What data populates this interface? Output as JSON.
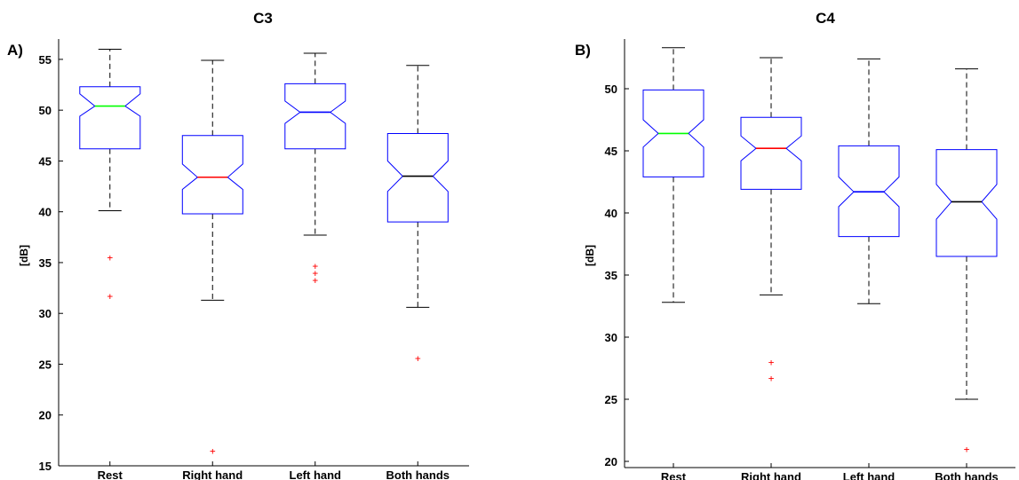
{
  "chart_data": [
    {
      "type": "boxplot",
      "panel_label": "A)",
      "title": "C3",
      "xlabel": "",
      "ylabel": "[dB]",
      "ylim": [
        15,
        57
      ],
      "yticks": [
        15,
        20,
        25,
        30,
        35,
        40,
        45,
        50,
        55
      ],
      "grid": false,
      "categories": [
        "Rest",
        "Right hand",
        "Left hand",
        "Both hands"
      ],
      "boxes": [
        {
          "category": "Rest",
          "whisker_low": 40.1,
          "q1": 46.2,
          "median": 50.4,
          "q3": 52.3,
          "whisker_high": 56.0,
          "notch_low": 49.4,
          "notch_high": 51.6,
          "outliers": [
            35.5,
            31.7
          ],
          "median_color": "#00ff00"
        },
        {
          "category": "Right hand",
          "whisker_low": 31.3,
          "q1": 39.8,
          "median": 43.4,
          "q3": 47.5,
          "whisker_high": 54.9,
          "notch_low": 42.2,
          "notch_high": 44.7,
          "outliers": [
            16.5
          ],
          "median_color": "#ff0000"
        },
        {
          "category": "Left hand",
          "whisker_low": 37.7,
          "q1": 46.2,
          "median": 49.8,
          "q3": 52.6,
          "whisker_high": 55.6,
          "notch_low": 48.7,
          "notch_high": 50.9,
          "outliers": [
            34.7,
            34.0,
            33.3
          ],
          "median_color": "#0000ff"
        },
        {
          "category": "Both hands",
          "whisker_low": 30.6,
          "q1": 39.0,
          "median": 43.5,
          "q3": 47.7,
          "whisker_high": 54.4,
          "notch_low": 42.0,
          "notch_high": 45.0,
          "outliers": [
            25.6
          ],
          "median_color": "#000000"
        }
      ]
    },
    {
      "type": "boxplot",
      "panel_label": "B)",
      "title": "C4",
      "xlabel": "",
      "ylabel": "[dB]",
      "ylim": [
        19.5,
        54
      ],
      "yticks": [
        20,
        25,
        30,
        35,
        40,
        45,
        50
      ],
      "grid": false,
      "categories": [
        "Rest",
        "Right hand",
        "Left hand",
        "Both hands"
      ],
      "boxes": [
        {
          "category": "Rest",
          "whisker_low": 32.8,
          "q1": 42.9,
          "median": 46.4,
          "q3": 49.9,
          "whisker_high": 53.3,
          "notch_low": 45.3,
          "notch_high": 47.5,
          "outliers": [],
          "median_color": "#00ff00"
        },
        {
          "category": "Right hand",
          "whisker_low": 33.4,
          "q1": 41.9,
          "median": 45.2,
          "q3": 47.7,
          "whisker_high": 52.5,
          "notch_low": 44.2,
          "notch_high": 46.2,
          "outliers": [
            28.0,
            26.7
          ],
          "median_color": "#ff0000"
        },
        {
          "category": "Left hand",
          "whisker_low": 32.7,
          "q1": 38.1,
          "median": 41.7,
          "q3": 45.4,
          "whisker_high": 52.4,
          "notch_low": 40.5,
          "notch_high": 42.9,
          "outliers": [],
          "median_color": "#0000ff"
        },
        {
          "category": "Both hands",
          "whisker_low": 25.0,
          "q1": 36.5,
          "median": 40.9,
          "q3": 45.1,
          "whisker_high": 51.6,
          "notch_low": 39.5,
          "notch_high": 42.3,
          "outliers": [
            21.0
          ],
          "median_color": "#000000"
        }
      ]
    }
  ]
}
